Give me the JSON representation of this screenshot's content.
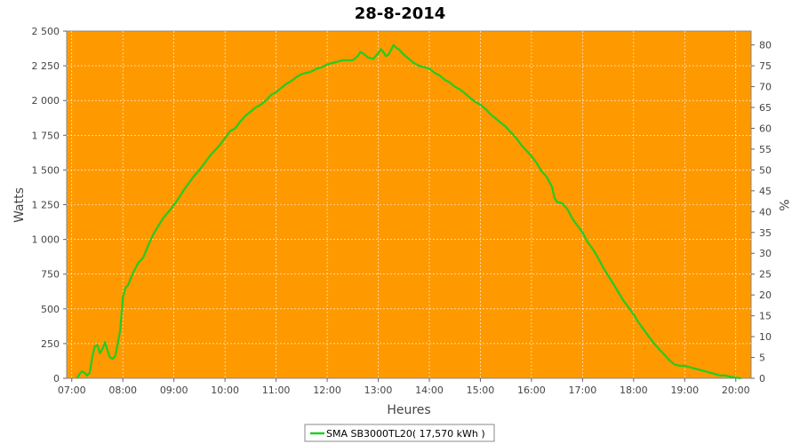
{
  "chart_data": {
    "type": "line",
    "title": "28-8-2014",
    "xlabel": "Heures",
    "ylabel": "Watts",
    "y2label": "%",
    "xlim": [
      6.9,
      20.3
    ],
    "ylim": [
      0,
      2500
    ],
    "y2lim": [
      0,
      83.33
    ],
    "x_ticks": [
      "07:00",
      "08:00",
      "09:00",
      "10:00",
      "11:00",
      "12:00",
      "13:00",
      "14:00",
      "15:00",
      "16:00",
      "17:00",
      "18:00",
      "19:00",
      "20:00"
    ],
    "y_ticks": [
      "0",
      "250",
      "500",
      "750",
      "1 000",
      "1 250",
      "1 500",
      "1 750",
      "2 000",
      "2 250",
      "2 500"
    ],
    "y2_ticks": [
      "0",
      "5",
      "10",
      "15",
      "20",
      "25",
      "30",
      "35",
      "40",
      "45",
      "50",
      "55",
      "60",
      "65",
      "70",
      "75",
      "80"
    ],
    "grid": true,
    "plot_background": "#ff9900",
    "legend_position": "bottom-center",
    "series": [
      {
        "name": "SMA SB3000TL20( 17,570 kWh )",
        "color": "#22cc22",
        "points": [
          [
            7.1,
            0
          ],
          [
            7.15,
            30
          ],
          [
            7.2,
            50
          ],
          [
            7.25,
            40
          ],
          [
            7.3,
            20
          ],
          [
            7.35,
            40
          ],
          [
            7.4,
            150
          ],
          [
            7.45,
            230
          ],
          [
            7.5,
            240
          ],
          [
            7.55,
            180
          ],
          [
            7.6,
            210
          ],
          [
            7.65,
            260
          ],
          [
            7.7,
            200
          ],
          [
            7.75,
            150
          ],
          [
            7.8,
            140
          ],
          [
            7.85,
            160
          ],
          [
            7.9,
            250
          ],
          [
            7.95,
            350
          ],
          [
            8.0,
            580
          ],
          [
            8.05,
            650
          ],
          [
            8.1,
            670
          ],
          [
            8.2,
            760
          ],
          [
            8.3,
            830
          ],
          [
            8.4,
            870
          ],
          [
            8.5,
            960
          ],
          [
            8.6,
            1040
          ],
          [
            8.7,
            1100
          ],
          [
            8.8,
            1160
          ],
          [
            8.9,
            1200
          ],
          [
            9.0,
            1250
          ],
          [
            9.1,
            1300
          ],
          [
            9.2,
            1360
          ],
          [
            9.3,
            1410
          ],
          [
            9.4,
            1460
          ],
          [
            9.5,
            1500
          ],
          [
            9.6,
            1550
          ],
          [
            9.7,
            1600
          ],
          [
            9.8,
            1640
          ],
          [
            9.9,
            1680
          ],
          [
            10.0,
            1730
          ],
          [
            10.1,
            1780
          ],
          [
            10.2,
            1800
          ],
          [
            10.3,
            1850
          ],
          [
            10.4,
            1890
          ],
          [
            10.5,
            1920
          ],
          [
            10.6,
            1950
          ],
          [
            10.7,
            1970
          ],
          [
            10.8,
            2000
          ],
          [
            10.9,
            2040
          ],
          [
            11.0,
            2060
          ],
          [
            11.1,
            2090
          ],
          [
            11.2,
            2120
          ],
          [
            11.3,
            2140
          ],
          [
            11.4,
            2170
          ],
          [
            11.5,
            2190
          ],
          [
            11.6,
            2200
          ],
          [
            11.7,
            2210
          ],
          [
            11.8,
            2230
          ],
          [
            11.9,
            2240
          ],
          [
            12.0,
            2260
          ],
          [
            12.1,
            2270
          ],
          [
            12.2,
            2280
          ],
          [
            12.3,
            2290
          ],
          [
            12.4,
            2290
          ],
          [
            12.5,
            2290
          ],
          [
            12.6,
            2320
          ],
          [
            12.65,
            2350
          ],
          [
            12.7,
            2340
          ],
          [
            12.8,
            2310
          ],
          [
            12.9,
            2300
          ],
          [
            13.0,
            2340
          ],
          [
            13.05,
            2370
          ],
          [
            13.1,
            2350
          ],
          [
            13.15,
            2320
          ],
          [
            13.2,
            2330
          ],
          [
            13.3,
            2400
          ],
          [
            13.35,
            2380
          ],
          [
            13.4,
            2370
          ],
          [
            13.5,
            2330
          ],
          [
            13.6,
            2300
          ],
          [
            13.7,
            2270
          ],
          [
            13.8,
            2250
          ],
          [
            13.9,
            2240
          ],
          [
            14.0,
            2230
          ],
          [
            14.1,
            2200
          ],
          [
            14.2,
            2180
          ],
          [
            14.3,
            2150
          ],
          [
            14.4,
            2130
          ],
          [
            14.5,
            2100
          ],
          [
            14.6,
            2080
          ],
          [
            14.7,
            2050
          ],
          [
            14.8,
            2020
          ],
          [
            14.9,
            1990
          ],
          [
            15.0,
            1970
          ],
          [
            15.1,
            1940
          ],
          [
            15.2,
            1900
          ],
          [
            15.3,
            1870
          ],
          [
            15.4,
            1840
          ],
          [
            15.5,
            1810
          ],
          [
            15.6,
            1770
          ],
          [
            15.7,
            1730
          ],
          [
            15.8,
            1680
          ],
          [
            15.9,
            1640
          ],
          [
            16.0,
            1600
          ],
          [
            16.1,
            1550
          ],
          [
            16.2,
            1490
          ],
          [
            16.3,
            1450
          ],
          [
            16.4,
            1380
          ],
          [
            16.45,
            1300
          ],
          [
            16.5,
            1270
          ],
          [
            16.6,
            1260
          ],
          [
            16.7,
            1220
          ],
          [
            16.8,
            1150
          ],
          [
            16.9,
            1100
          ],
          [
            17.0,
            1050
          ],
          [
            17.1,
            980
          ],
          [
            17.2,
            930
          ],
          [
            17.3,
            870
          ],
          [
            17.4,
            800
          ],
          [
            17.5,
            740
          ],
          [
            17.6,
            680
          ],
          [
            17.7,
            620
          ],
          [
            17.8,
            560
          ],
          [
            17.9,
            510
          ],
          [
            18.0,
            460
          ],
          [
            18.1,
            400
          ],
          [
            18.2,
            350
          ],
          [
            18.3,
            300
          ],
          [
            18.4,
            250
          ],
          [
            18.5,
            210
          ],
          [
            18.6,
            170
          ],
          [
            18.7,
            130
          ],
          [
            18.8,
            100
          ],
          [
            18.9,
            90
          ],
          [
            19.0,
            90
          ],
          [
            19.1,
            80
          ],
          [
            19.2,
            70
          ],
          [
            19.3,
            60
          ],
          [
            19.4,
            50
          ],
          [
            19.5,
            40
          ],
          [
            19.6,
            30
          ],
          [
            19.7,
            20
          ],
          [
            19.8,
            20
          ],
          [
            19.9,
            10
          ],
          [
            20.0,
            5
          ],
          [
            20.1,
            0
          ]
        ]
      }
    ]
  }
}
